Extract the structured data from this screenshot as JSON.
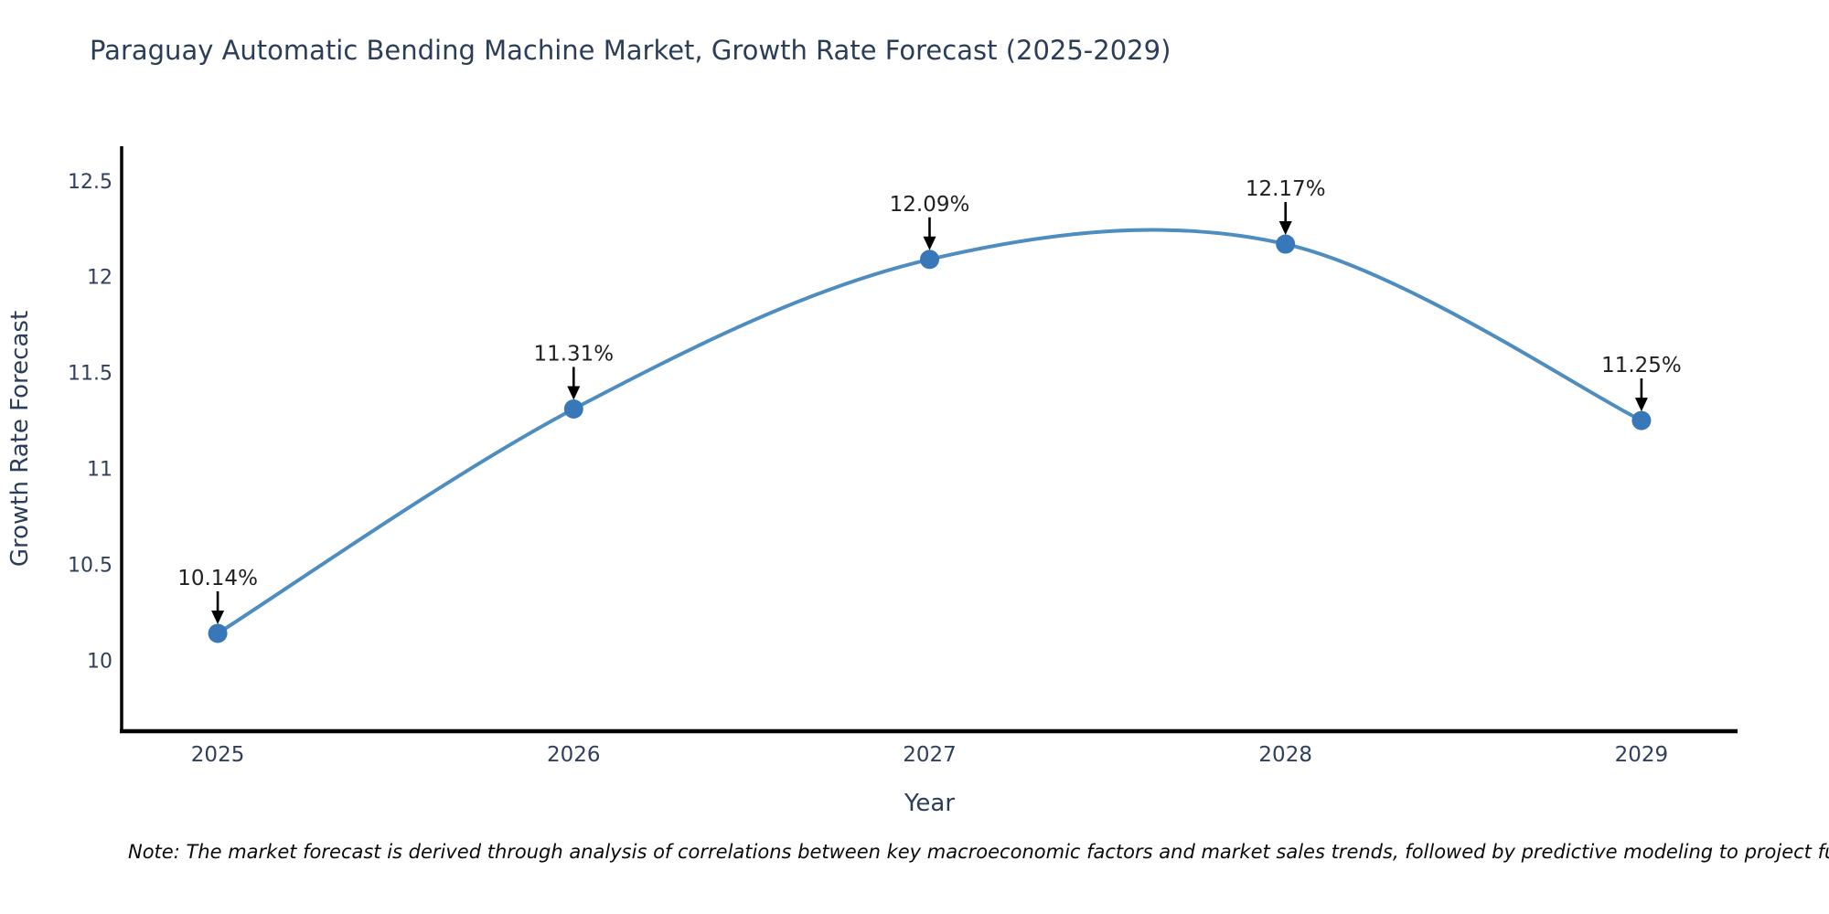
{
  "title": "Paraguay Automatic Bending Machine Market, Growth Rate Forecast (2025-2029)",
  "footnote": "Note: The market forecast is derived through analysis of correlations between key macroeconomic factors and market sales trends, followed by predictive modeling to project future sal",
  "chart_data": {
    "type": "line",
    "line_shape": "spline",
    "title": "Paraguay Automatic Bending Machine Market, Growth Rate Forecast (2025-2029)",
    "xlabel": "Year",
    "ylabel": "Growth Rate Forecast",
    "x": [
      2025,
      2026,
      2027,
      2028,
      2029
    ],
    "values": [
      10.14,
      11.31,
      12.09,
      12.17,
      11.25
    ],
    "point_labels": [
      "10.14%",
      "11.31%",
      "12.09%",
      "12.17%",
      "11.25%"
    ],
    "xticks": [
      2025,
      2026,
      2027,
      2028,
      2029
    ],
    "xtick_labels": [
      "2025",
      "2026",
      "2027",
      "2028",
      "2029"
    ],
    "yticks": [
      10,
      10.5,
      11,
      11.5,
      12,
      12.5
    ],
    "ytick_labels": [
      "10",
      "10.5",
      "11",
      "11.5",
      "12",
      "12.5"
    ],
    "xlim": [
      2024.73,
      2029.27
    ],
    "ylim": [
      9.63,
      12.68
    ],
    "grid": false,
    "legend": "none",
    "colors": {
      "line": "#4e8dc0",
      "marker": "#3878b8",
      "axis_line": "#000000",
      "annotation_arrow": "#000000",
      "annotation_text": "#1f1f1f",
      "tick_text": "#2f3f5c",
      "title_text": "#2b3d59",
      "background": "#ffffff"
    }
  }
}
